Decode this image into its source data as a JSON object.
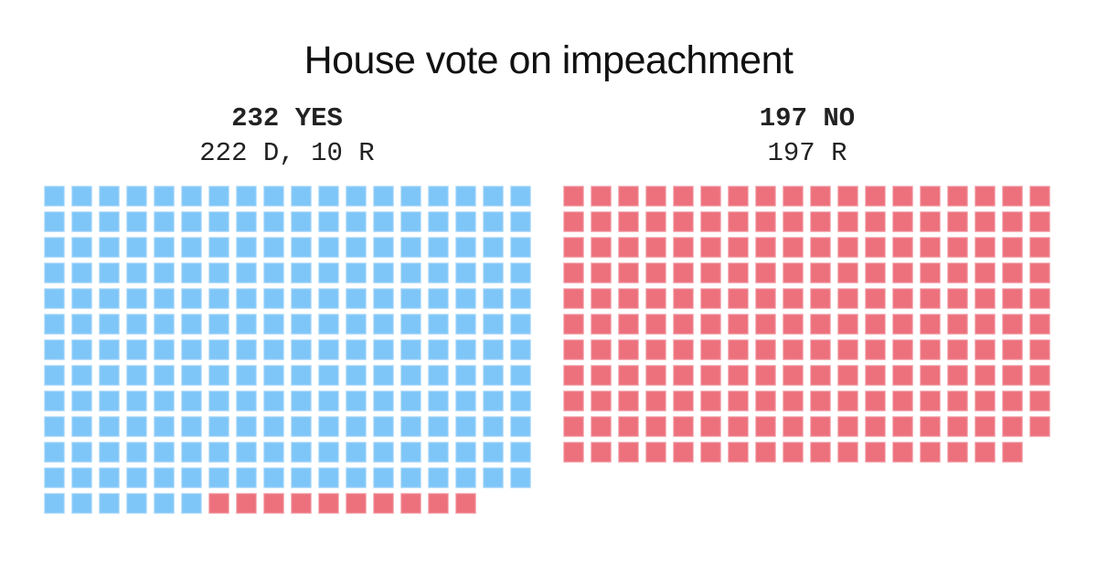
{
  "title": "House vote on impeachment",
  "colors": {
    "democrat": "#7fc6f8",
    "republican": "#ec717d"
  },
  "panels": [
    {
      "id": "yes",
      "headline": "232 YES",
      "breakdown": "222 D, 10 R",
      "total": 232,
      "democrat": 222,
      "republican": 10
    },
    {
      "id": "no",
      "headline": "197 NO",
      "breakdown": "197 R",
      "total": 197,
      "democrat": 0,
      "republican": 197
    }
  ],
  "chart_data": {
    "type": "waffle",
    "title": "House vote on impeachment",
    "columns_per_grid": 18,
    "categories": [
      "Yes",
      "No"
    ],
    "series": [
      {
        "name": "Democrat",
        "color": "#7fc6f8",
        "values": [
          222,
          0
        ]
      },
      {
        "name": "Republican",
        "color": "#ec717d",
        "values": [
          10,
          197
        ]
      }
    ],
    "totals": [
      232,
      197
    ],
    "labels": [
      "232 YES — 222 D, 10 R",
      "197 NO — 197 R"
    ]
  }
}
